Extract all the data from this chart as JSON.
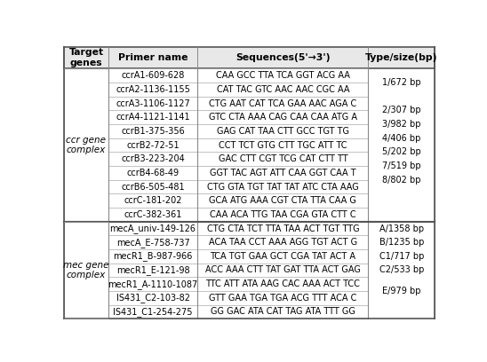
{
  "headers": [
    "Target\ngenes",
    "Primer name",
    "Sequences(5'→3')",
    "Type/size(bp)"
  ],
  "ccr_rows": [
    [
      "ccrA1-609-628",
      "CAA GCC TTA TCA GGT ACG AA"
    ],
    [
      "ccrA2-1136-1155",
      "CAT TAC GTC AAC AAC CGC AA"
    ],
    [
      "ccrA3-1106-1127",
      "CTG AAT CAT TCA GAA AAC AGA C"
    ],
    [
      "ccrA4-1121-1141",
      "GTC CTA AAA CAG CAA CAA ATG A"
    ],
    [
      "ccrB1-375-356",
      "GAG CAT TAA CTT GCC TGT TG"
    ],
    [
      "ccrB2-72-51",
      "CCT TCT GTG CTT TGC ATT TC"
    ],
    [
      "ccrB3-223-204",
      "GAC CTT CGT TCG CAT CTT TT"
    ],
    [
      "ccrB4-68-49",
      "GGT TAC AGT ATT CAA GGT CAA T"
    ],
    [
      "ccrB6-505-481",
      "CTG GTA TGT TAT TAT ATC CTA AAG"
    ],
    [
      "ccrC-181-202",
      "GCA ATG AAA CGT CTA TTA CAA G"
    ],
    [
      "ccrC-382-361",
      "CAA ACA TTG TAA CGA GTA CTT C"
    ]
  ],
  "ccr_type_labels": [
    "1/672 bp",
    "2/307 bp",
    "3/982 bp",
    "4/406 bp",
    "5/202 bp",
    "7/519 bp",
    "8/802 bp"
  ],
  "ccr_type_row_centers": [
    1.5,
    3.5,
    4.5,
    5.5,
    6.5,
    7.5,
    8.5
  ],
  "mec_rows": [
    [
      "mecA_univ-149-126",
      "CTG CTA TCT TTA TAA ACT TGT TTG"
    ],
    [
      "mecA_E-758-737",
      "ACA TAA CCT AAA AGG TGT ACT G"
    ],
    [
      "mecR1_B-987-966",
      "TCA TGT GAA GCT CGA TAT ACT A"
    ],
    [
      "mecR1_E-121-98",
      "ACC AAA CTT TAT GAT TTA ACT GAG"
    ],
    [
      "mecR1_A-1110-1087",
      "TTC ATT ATA AAG CAC AAA ACT TCC"
    ],
    [
      "IS431_C2-103-82",
      "GTT GAA TGA TGA ACG TTT ACA C"
    ],
    [
      "IS431_C1-254-275",
      "GG GAC ATA CAT TAG ATA TTT GG"
    ]
  ],
  "mec_type_labels": [
    "A/1358 bp",
    "B/1235 bp",
    "C1/717 bp",
    "C2/533 bp",
    "E/979 bp"
  ],
  "mec_type_row_centers": [
    1.0,
    2.0,
    3.0,
    4.0,
    5.5
  ],
  "header_bg": "#e8e8e8",
  "cell_bg": "#ffffff",
  "border_color": "#888888",
  "thick_border": "#555555",
  "text_color": "#000000",
  "header_fontsize": 7.8,
  "cell_fontsize": 7.0,
  "label_fontsize": 7.0,
  "col_label_fontsize": 7.5
}
